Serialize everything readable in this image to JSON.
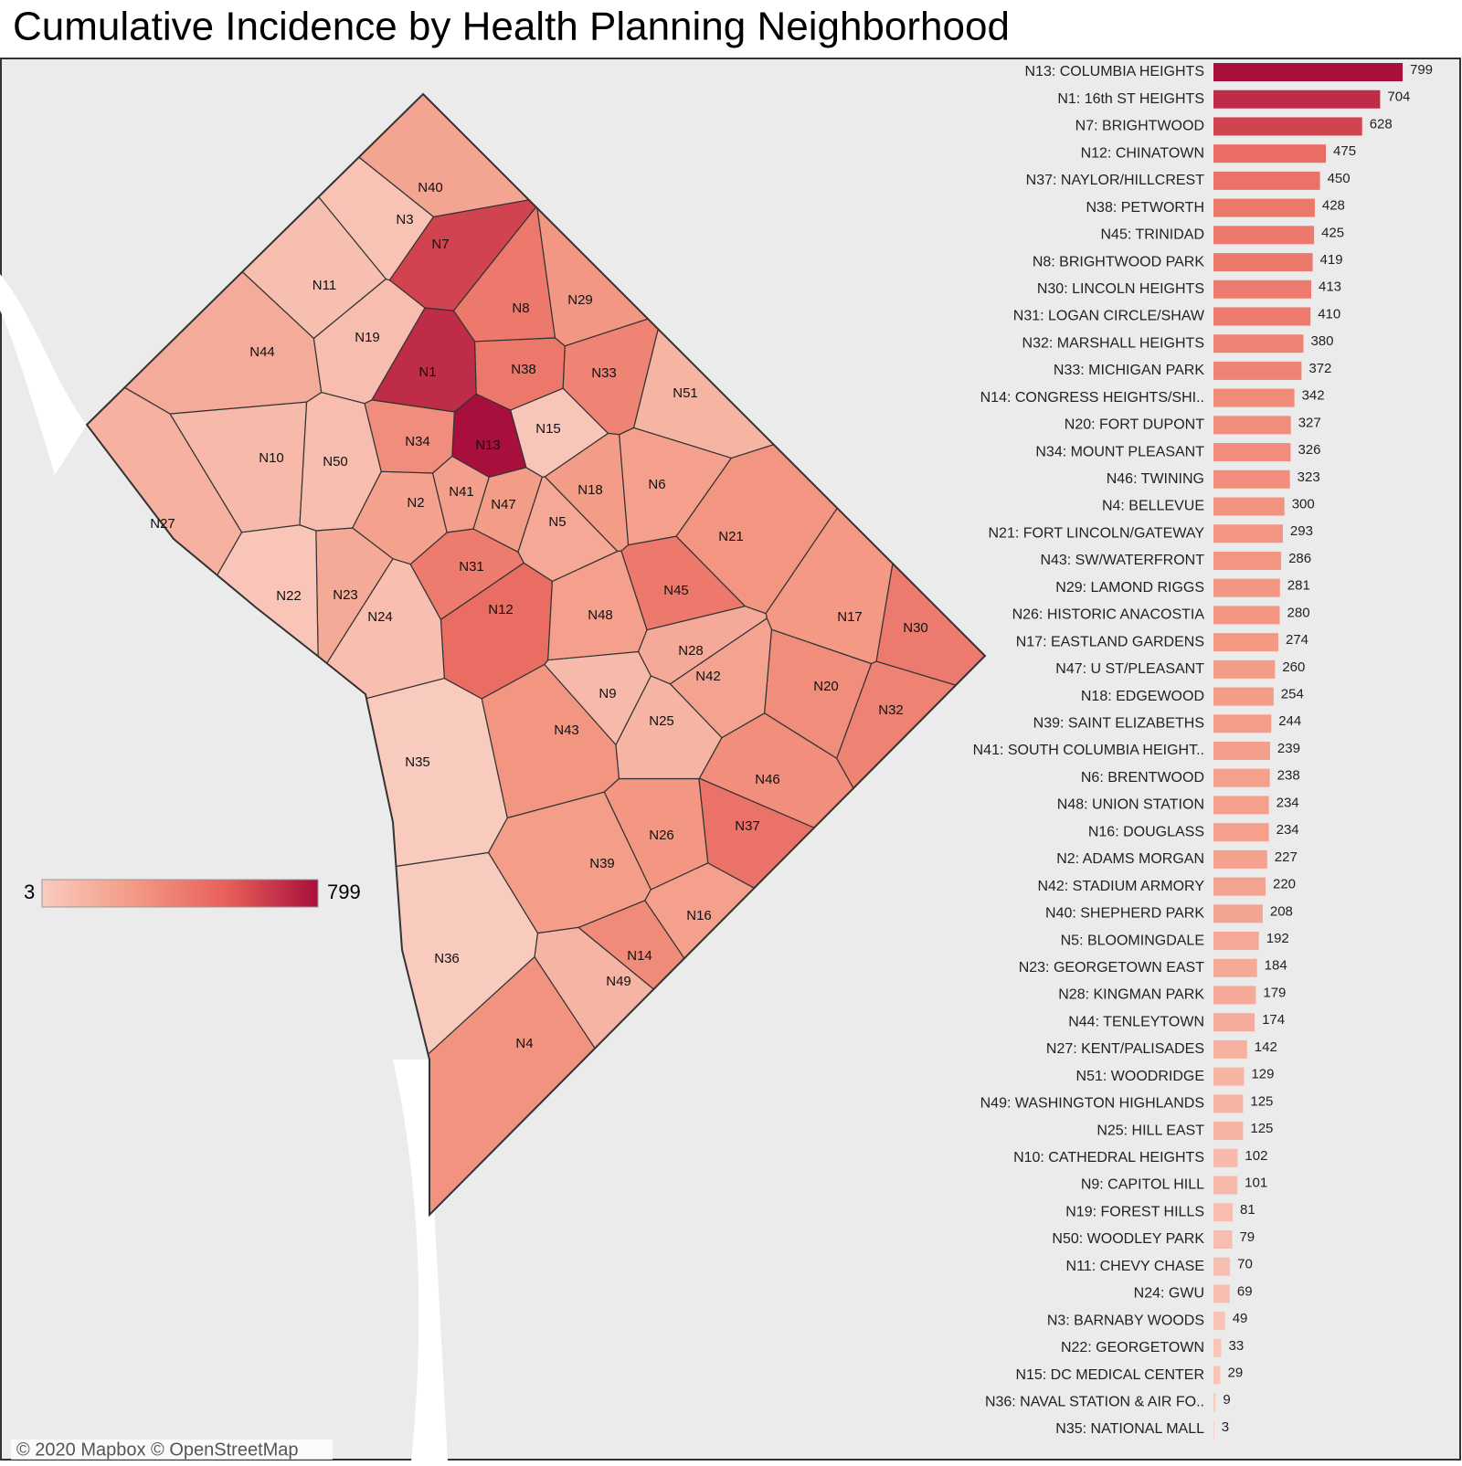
{
  "chart_data": {
    "type": "choropleth-bar",
    "title": "Cumulative Incidence by Health Planning Neighborhood",
    "attribution": "© 2020 Mapbox © OpenStreetMap",
    "categories": [
      "N13: COLUMBIA HEIGHTS",
      "N1: 16th ST HEIGHTS",
      "N7: BRIGHTWOOD",
      "N12: CHINATOWN",
      "N37: NAYLOR/HILLCREST",
      "N38: PETWORTH",
      "N45: TRINIDAD",
      "N8: BRIGHTWOOD PARK",
      "N30: LINCOLN HEIGHTS",
      "N31: LOGAN CIRCLE/SHAW",
      "N32: MARSHALL HEIGHTS",
      "N33: MICHIGAN PARK",
      "N14: CONGRESS HEIGHTS/SHI..",
      "N20: FORT DUPONT",
      "N34: MOUNT PLEASANT",
      "N46: TWINING",
      "N4: BELLEVUE",
      "N21: FORT LINCOLN/GATEWAY",
      "N43: SW/WATERFRONT",
      "N29: LAMOND RIGGS",
      "N26: HISTORIC ANACOSTIA",
      "N17: EASTLAND GARDENS",
      "N47: U ST/PLEASANT",
      "N18: EDGEWOOD",
      "N39: SAINT ELIZABETHS",
      "N41: SOUTH COLUMBIA HEIGHT..",
      "N6: BRENTWOOD",
      "N48: UNION STATION",
      "N16: DOUGLASS",
      "N2: ADAMS MORGAN",
      "N42: STADIUM ARMORY",
      "N40: SHEPHERD PARK",
      "N5: BLOOMINGDALE",
      "N23: GEORGETOWN EAST",
      "N28: KINGMAN PARK",
      "N44: TENLEYTOWN",
      "N27: KENT/PALISADES",
      "N51: WOODRIDGE",
      "N49: WASHINGTON HIGHLANDS",
      "N25: HILL EAST",
      "N10: CATHEDRAL HEIGHTS",
      "N9: CAPITOL HILL",
      "N19: FOREST HILLS",
      "N50: WOODLEY PARK",
      "N11: CHEVY CHASE",
      "N24: GWU",
      "N3: BARNABY WOODS",
      "N22: GEORGETOWN",
      "N15: DC MEDICAL CENTER",
      "N36: NAVAL STATION & AIR FO..",
      "N35: NATIONAL MALL"
    ],
    "map_labels": [
      "N13",
      "N1",
      "N7",
      "N12",
      "N37",
      "N38",
      "N45",
      "N8",
      "N30",
      "N31",
      "N32",
      "N33",
      "N14",
      "N20",
      "N34",
      "N46",
      "N4",
      "N21",
      "N43",
      "N29",
      "N26",
      "N17",
      "N47",
      "N18",
      "N39",
      "N41",
      "N6",
      "N48",
      "N16",
      "N2",
      "N42",
      "N40",
      "N5",
      "N23",
      "N28",
      "N44",
      "N27",
      "N51",
      "N49",
      "N25",
      "N10",
      "N9",
      "N19",
      "N50",
      "N11",
      "N24",
      "N3",
      "N22",
      "N15",
      "N36",
      "N35"
    ],
    "values": [
      799,
      704,
      628,
      475,
      450,
      428,
      425,
      419,
      413,
      410,
      380,
      372,
      342,
      327,
      326,
      323,
      300,
      293,
      286,
      281,
      280,
      274,
      260,
      254,
      244,
      239,
      238,
      234,
      234,
      227,
      220,
      208,
      192,
      184,
      179,
      174,
      142,
      129,
      125,
      125,
      102,
      101,
      81,
      79,
      70,
      69,
      49,
      33,
      29,
      9,
      3
    ],
    "color_range": [
      3,
      799
    ],
    "colorscale": [
      "#f9cbbf",
      "#f39a85",
      "#e8605a",
      "#a80f3c"
    ]
  }
}
